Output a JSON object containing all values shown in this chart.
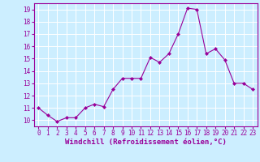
{
  "x": [
    0,
    1,
    2,
    3,
    4,
    5,
    6,
    7,
    8,
    9,
    10,
    11,
    12,
    13,
    14,
    15,
    16,
    17,
    18,
    19,
    20,
    21,
    22,
    23
  ],
  "y": [
    11.0,
    10.4,
    9.9,
    10.2,
    10.2,
    11.0,
    11.3,
    11.1,
    12.5,
    13.4,
    13.4,
    13.4,
    15.1,
    14.7,
    15.4,
    17.0,
    19.1,
    19.0,
    15.4,
    15.8,
    14.9,
    13.0,
    13.0,
    12.5
  ],
  "line_color": "#990099",
  "marker": "D",
  "marker_size": 2.0,
  "bg_color": "#cceeff",
  "grid_color": "#ffffff",
  "xlabel": "Windchill (Refroidissement éolien,°C)",
  "xlabel_color": "#990099",
  "ylim": [
    9.5,
    19.5
  ],
  "yticks": [
    10,
    11,
    12,
    13,
    14,
    15,
    16,
    17,
    18,
    19
  ],
  "xticks": [
    0,
    1,
    2,
    3,
    4,
    5,
    6,
    7,
    8,
    9,
    10,
    11,
    12,
    13,
    14,
    15,
    16,
    17,
    18,
    19,
    20,
    21,
    22,
    23
  ],
  "tick_fontsize": 5.5,
  "xlabel_fontsize": 6.5,
  "xlabel_fontweight": "bold"
}
